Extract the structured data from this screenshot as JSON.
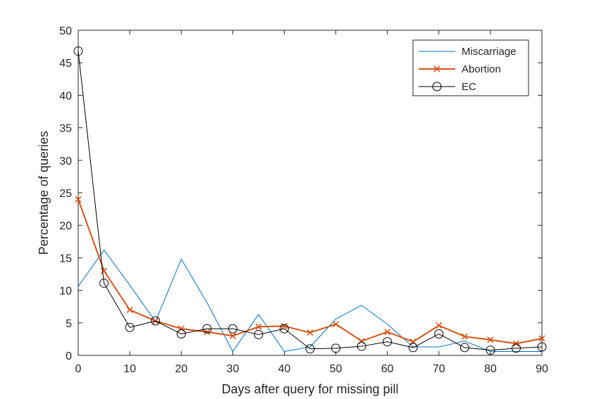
{
  "chart_data": {
    "type": "line",
    "xlabel": "Days after query for missing pill",
    "ylabel": "Percentage of queries",
    "xlim": [
      0,
      90
    ],
    "ylim": [
      0,
      50
    ],
    "xticks": [
      0,
      10,
      20,
      30,
      40,
      50,
      60,
      70,
      80,
      90
    ],
    "yticks": [
      0,
      5,
      10,
      15,
      20,
      25,
      30,
      35,
      40,
      45,
      50
    ],
    "grid": false,
    "legend_position": "top-right",
    "x": [
      0,
      5,
      10,
      15,
      20,
      25,
      30,
      35,
      40,
      45,
      50,
      55,
      60,
      65,
      70,
      75,
      80,
      85,
      90
    ],
    "series": [
      {
        "name": "Miscarriage",
        "color": "#0072BD",
        "marker": "none",
        "values": [
          10.6,
          16.2,
          10.8,
          5.2,
          14.8,
          8.1,
          0.6,
          6.3,
          0.6,
          1.3,
          5.6,
          7.7,
          4.8,
          1.3,
          1.3,
          2.2,
          0.6,
          0.6,
          0.6
        ]
      },
      {
        "name": "Abortion",
        "color": "#D95319",
        "marker": "x",
        "values": [
          24.0,
          13.0,
          7.0,
          5.3,
          4.1,
          3.6,
          3.0,
          4.4,
          4.5,
          3.5,
          4.8,
          2.2,
          3.6,
          2.1,
          4.6,
          2.9,
          2.4,
          1.8,
          2.6
        ]
      },
      {
        "name": "EC",
        "color": "#000000",
        "marker": "o",
        "values": [
          46.8,
          11.1,
          4.3,
          5.3,
          3.3,
          4.1,
          4.1,
          3.2,
          4.1,
          1.0,
          1.1,
          1.4,
          2.1,
          1.2,
          3.3,
          1.2,
          0.8,
          1.1,
          1.3
        ]
      }
    ]
  }
}
